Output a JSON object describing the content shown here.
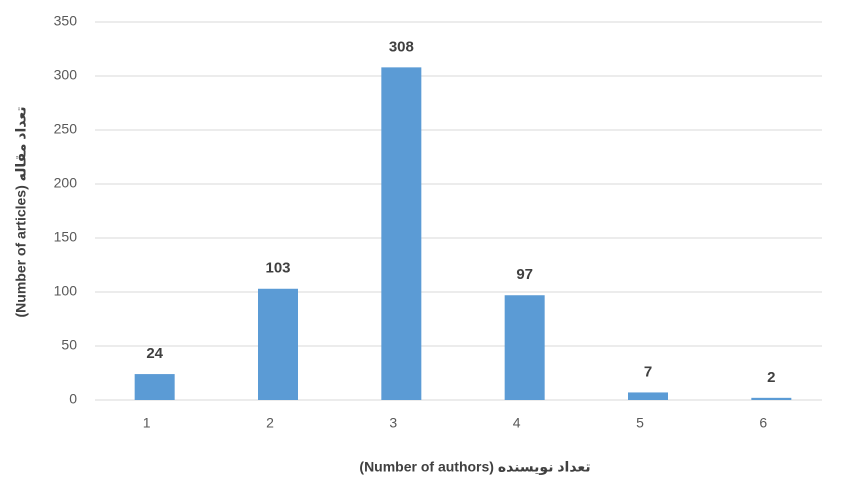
{
  "chart_data": {
    "type": "bar",
    "x_label": "(Number of authors) تعداد نویسنده",
    "y_label": "(Number of articles) تعداد مقاله",
    "categories": [
      "1",
      "2",
      "3",
      "4",
      "5",
      "6"
    ],
    "values": [
      24,
      103,
      308,
      97,
      7,
      2
    ],
    "color": "#5b9bd5",
    "ylim": [
      0,
      350
    ],
    "yticks": [
      0,
      50,
      100,
      150,
      200,
      250,
      300,
      350
    ],
    "grid": true
  }
}
